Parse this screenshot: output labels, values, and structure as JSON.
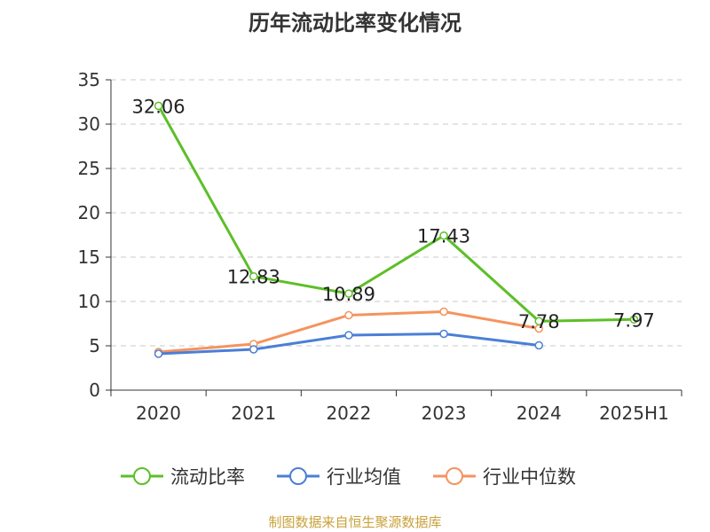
{
  "title": "历年流动比率变化情况",
  "source": "制图数据来自恒生聚源数据库",
  "colors": {
    "current_ratio": "#5cbf27",
    "industry_avg": "#4a7fd6",
    "industry_median": "#f5935e",
    "grid": "#c8c8c8",
    "axis": "#333333"
  },
  "chart_data": {
    "type": "line",
    "title": "历年流动比率变化情况",
    "xlabel": "",
    "ylabel": "",
    "categories": [
      "2020",
      "2021",
      "2022",
      "2023",
      "2024",
      "2025H1"
    ],
    "ylim": [
      0,
      35
    ],
    "yticks": [
      0,
      5,
      10,
      15,
      20,
      25,
      30,
      35
    ],
    "grid": true,
    "legend_position": "bottom",
    "series": [
      {
        "name": "流动比率",
        "color": "#5cbf27",
        "values": [
          32.06,
          12.83,
          10.89,
          17.43,
          7.78,
          7.97
        ],
        "labels": [
          "32.06",
          "12.83",
          "10.89",
          "17.43",
          "7.78",
          "7.97"
        ]
      },
      {
        "name": "行业均值",
        "color": "#4a7fd6",
        "values": [
          4.1,
          4.6,
          6.2,
          6.35,
          5.05,
          null
        ]
      },
      {
        "name": "行业中位数",
        "color": "#f5935e",
        "values": [
          4.3,
          5.2,
          8.45,
          8.85,
          6.95,
          null
        ]
      }
    ]
  }
}
